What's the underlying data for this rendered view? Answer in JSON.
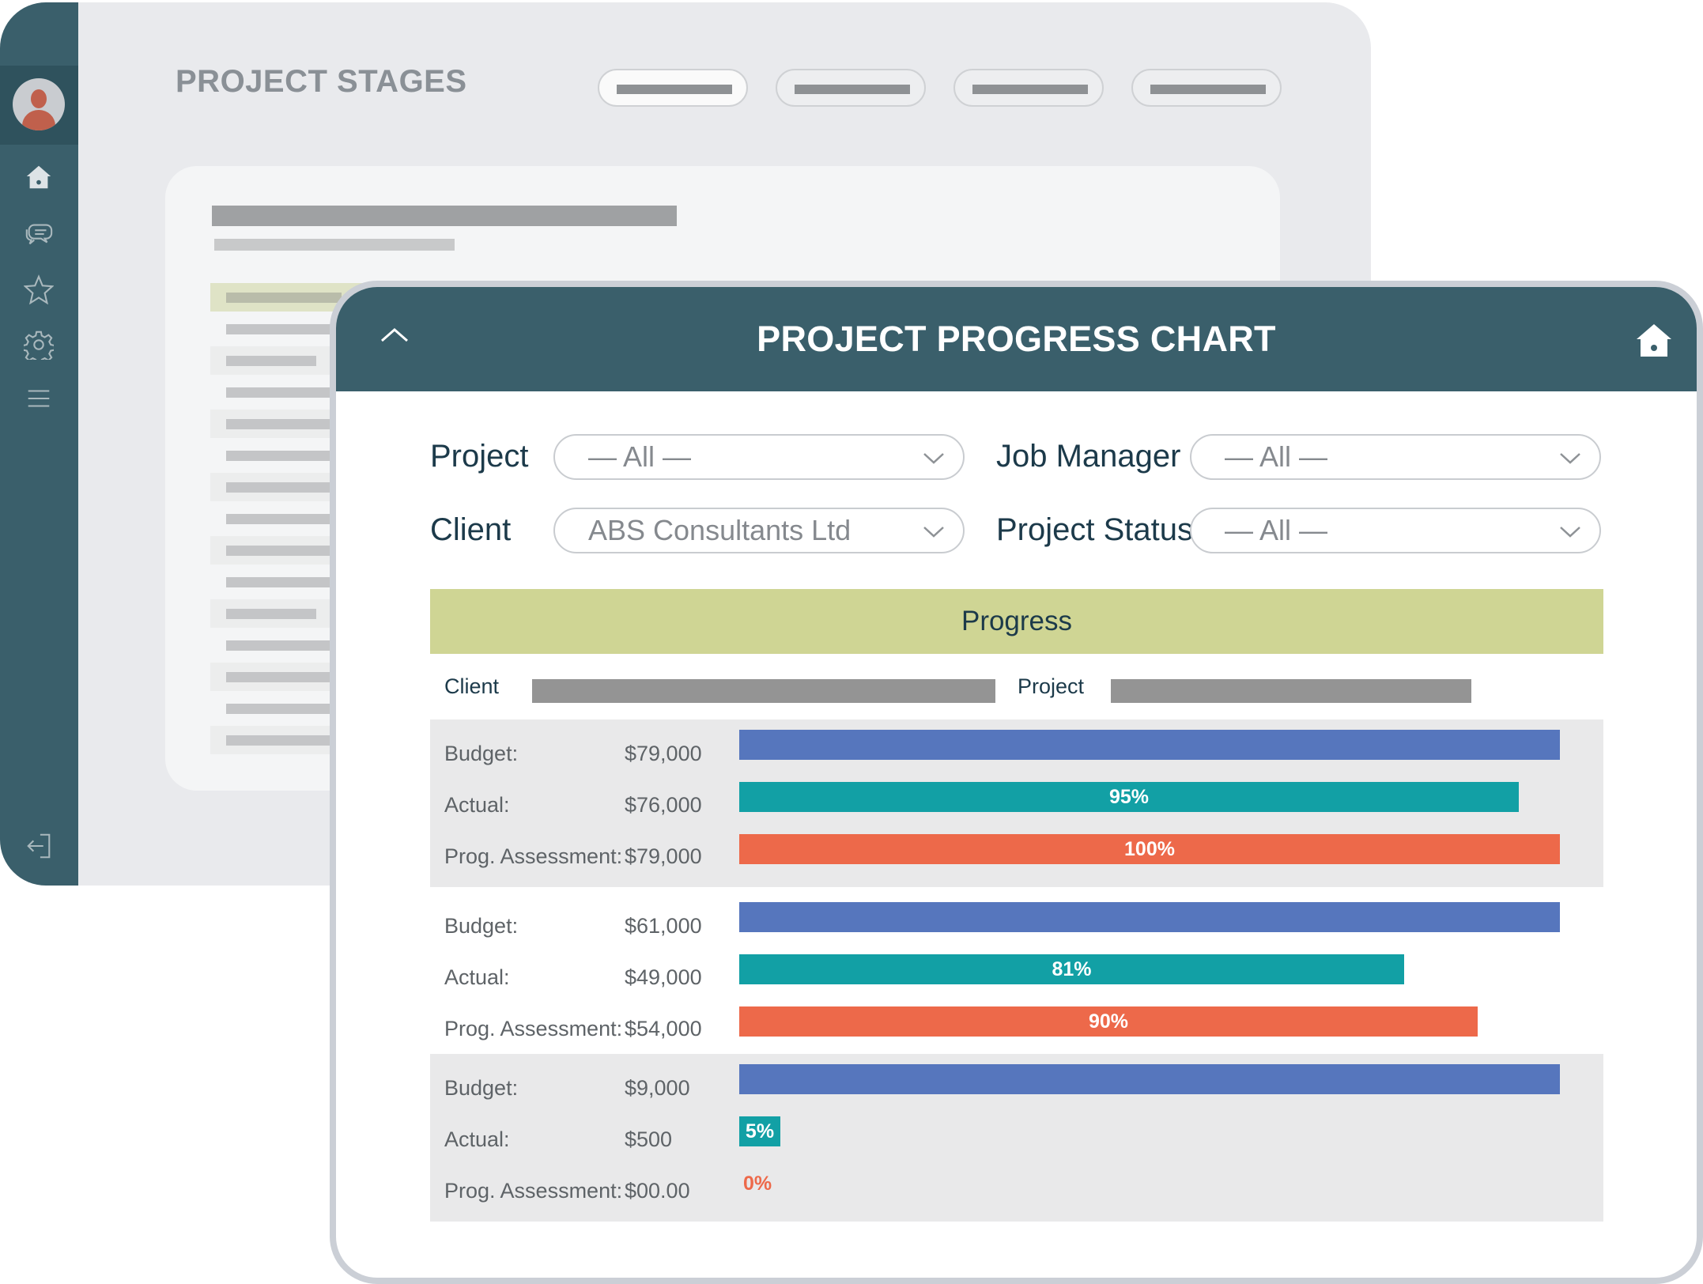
{
  "background_window": {
    "title": "PROJECT STAGES",
    "sidebar_icons": [
      "home-icon",
      "chat-icon",
      "star-icon",
      "gear-icon",
      "menu-icon",
      "logout-icon"
    ]
  },
  "front_window": {
    "title": "PROJECT PROGRESS CHART",
    "filters": {
      "project": {
        "label": "Project",
        "value": "— All —"
      },
      "job_manager": {
        "label": "Job Manager",
        "value": "— All —"
      },
      "client": {
        "label": "Client",
        "value": "ABS Consultants Ltd"
      },
      "project_status": {
        "label": "Project Status",
        "value": "— All —"
      }
    },
    "progress": {
      "heading": "Progress",
      "client_label": "Client",
      "project_label": "Project"
    },
    "groups": [
      {
        "rows": [
          {
            "label": "Budget:",
            "value": "$79,000",
            "fraction": 1.0,
            "pct": ""
          },
          {
            "label": "Actual:",
            "value": "$76,000",
            "fraction": 0.95,
            "pct": "95%"
          },
          {
            "label": "Prog. Assessment:",
            "value": "$79,000",
            "fraction": 1.0,
            "pct": "100%"
          }
        ]
      },
      {
        "rows": [
          {
            "label": "Budget:",
            "value": "$61,000",
            "fraction": 1.0,
            "pct": ""
          },
          {
            "label": "Actual:",
            "value": "$49,000",
            "fraction": 0.81,
            "pct": "81%"
          },
          {
            "label": "Prog. Assessment:",
            "value": "$54,000",
            "fraction": 0.9,
            "pct": "90%"
          }
        ]
      },
      {
        "rows": [
          {
            "label": "Budget:",
            "value": "$9,000",
            "fraction": 1.0,
            "pct": ""
          },
          {
            "label": "Actual:",
            "value": "$500",
            "fraction": 0.05,
            "pct": "5%"
          },
          {
            "label": "Prog. Assessment:",
            "value": "$00.00",
            "fraction": 0.0,
            "pct": "0%"
          }
        ]
      }
    ],
    "colors": {
      "header": "#3a5f6b",
      "budget": "#5676bd",
      "actual": "#12a0a5",
      "prog_assessment": "#ed694a",
      "progress_band": "#cfd594"
    }
  }
}
